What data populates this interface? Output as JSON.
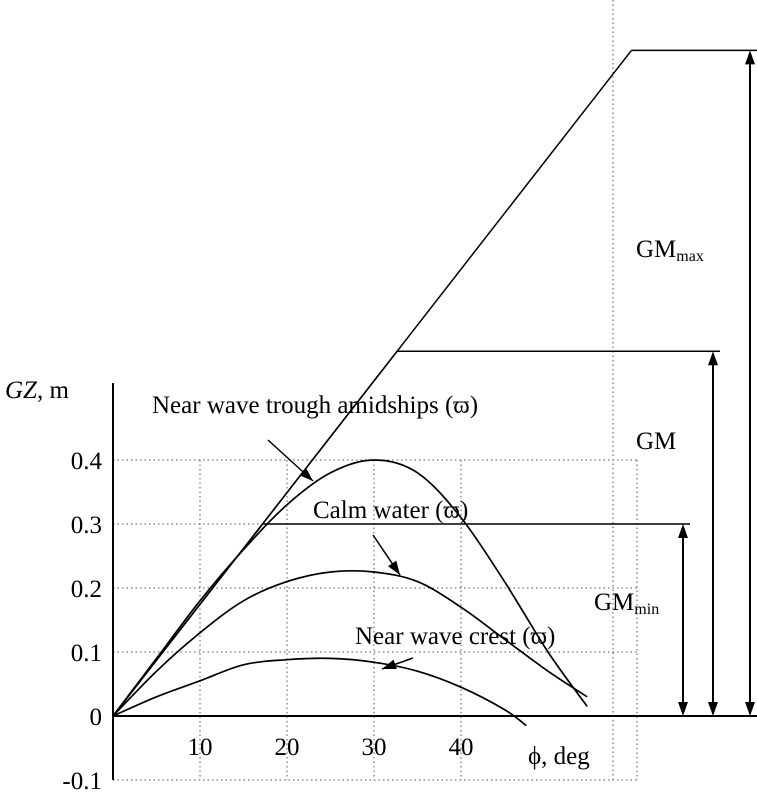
{
  "chart_data": {
    "type": "line",
    "x_unit_label": "ϕ, deg",
    "y_axis_label_italic": "GZ",
    "y_axis_label_unit": ", m",
    "xlim": [
      0,
      48
    ],
    "ylim": [
      -0.1,
      0.4
    ],
    "x_ticks": [
      10,
      20,
      30,
      40
    ],
    "x_tick_labels": [
      "10",
      "20",
      "30",
      "40"
    ],
    "y_ticks": [
      0.4,
      0.3,
      0.2,
      0.1,
      0,
      -0.1
    ],
    "y_tick_labels": [
      "0.4",
      "0.3",
      "0.2",
      "0.1",
      "0",
      "-0.1"
    ],
    "grid": true,
    "series": [
      {
        "name": "Near wave trough amidships (ϖ)",
        "x": [
          0,
          5,
          10,
          15,
          20,
          25,
          30,
          35,
          40,
          45,
          50,
          54.5
        ],
        "y": [
          0,
          0.09,
          0.18,
          0.26,
          0.33,
          0.38,
          0.4,
          0.38,
          0.31,
          0.21,
          0.1,
          0.015
        ]
      },
      {
        "name": "Calm water (ϖ)",
        "x": [
          0,
          5,
          10,
          15,
          20,
          25,
          30,
          35,
          40,
          45,
          50,
          54.5
        ],
        "y": [
          0,
          0.07,
          0.13,
          0.18,
          0.21,
          0.225,
          0.225,
          0.21,
          0.17,
          0.12,
          0.07,
          0.03
        ]
      },
      {
        "name": "Near wave crest (ϖ)",
        "x": [
          0,
          5,
          10,
          15,
          20,
          25,
          30,
          35,
          40,
          45,
          47.5
        ],
        "y": [
          0,
          0.03,
          0.055,
          0.08,
          0.088,
          0.09,
          0.084,
          0.07,
          0.045,
          0.01,
          -0.015
        ]
      }
    ],
    "tangents": [
      {
        "label_main": "GM",
        "label_sub": "max",
        "gm": 1.04,
        "label_at": [
          62,
          0.73
        ]
      },
      {
        "label_main": "GM",
        "label_sub": "",
        "gm": 0.57,
        "label_at": [
          62,
          0.42
        ]
      },
      {
        "label_main": "GM",
        "label_sub": "min",
        "gm": 0.3,
        "label_at": [
          56,
          0.17
        ]
      }
    ],
    "annotations": [
      {
        "text": "Near wave trough amidships (ϖ)",
        "series": 0
      },
      {
        "text": "Calm water (ϖ)",
        "series": 1
      },
      {
        "text": "Near wave crest (ϖ)",
        "series": 2
      }
    ]
  }
}
